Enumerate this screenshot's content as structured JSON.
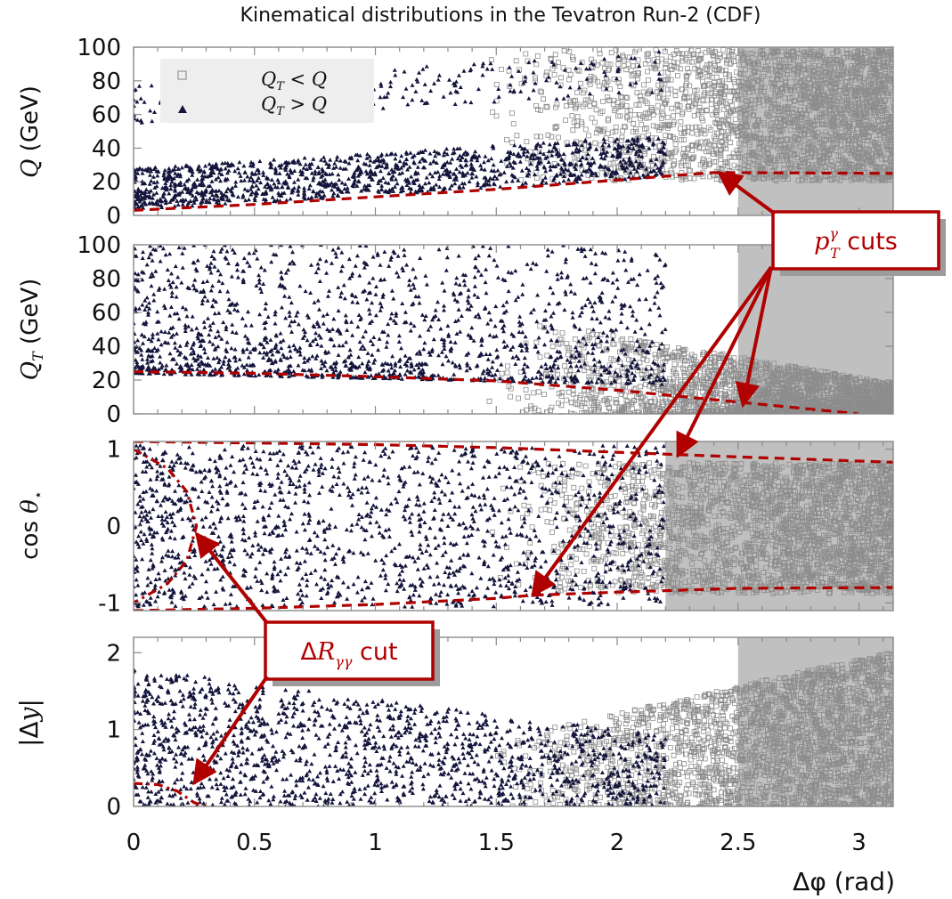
{
  "chart_data": {
    "type": "scatter",
    "title": "Kinematical distributions in the Tevatron Run-2 (CDF)",
    "xlabel": "Δφ (rad)",
    "xlim": [
      0,
      3.1416
    ],
    "x_ticks": [
      "0",
      "0.5",
      "1",
      "1.5",
      "2",
      "2.5",
      "3"
    ],
    "legend": {
      "placement": "top-left of first panel",
      "entries": [
        {
          "name": "Q_T < Q",
          "marker": "open-square",
          "color": "#9a9a9a"
        },
        {
          "name": "Q_T > Q",
          "marker": "filled-triangle",
          "color": "#14143c"
        }
      ]
    },
    "series_colors": {
      "lowQT": "#8c8c8c",
      "highQT": "#14143c",
      "cuts": "#b00000"
    },
    "panels": [
      {
        "id": "Q",
        "ylabel": "Q (GeV)",
        "ylim": [
          0,
          100
        ],
        "y_ticks": [
          "0",
          "20",
          "40",
          "60",
          "80",
          "100"
        ],
        "cut_curves": [
          {
            "name": "pT cut",
            "style": "dashed",
            "points": [
              [
                0,
                3
              ],
              [
                0.5,
                6.5
              ],
              [
                1.0,
                11
              ],
              [
                1.5,
                15.5
              ],
              [
                2.0,
                21
              ],
              [
                2.4,
                25.5
              ],
              [
                3.1416,
                25
              ]
            ]
          }
        ]
      },
      {
        "id": "QT",
        "ylabel": "Q_T (GeV)",
        "ylim": [
          0,
          100
        ],
        "y_ticks": [
          "0",
          "20",
          "40",
          "60",
          "80",
          "100"
        ],
        "cut_curves": [
          {
            "name": "pT cut",
            "style": "dashed",
            "points": [
              [
                0,
                25
              ],
              [
                0.5,
                24
              ],
              [
                1.0,
                22
              ],
              [
                1.5,
                19.5
              ],
              [
                2.0,
                14
              ],
              [
                2.5,
                7
              ],
              [
                3.0,
                0
              ]
            ]
          }
        ]
      },
      {
        "id": "cos",
        "ylabel": "cos θ⋆",
        "ylim": [
          -1.1,
          1.1
        ],
        "y_ticks": [
          "-1",
          "0",
          "1"
        ],
        "cut_curves": [
          {
            "name": "pT cut upper",
            "style": "dashed",
            "points": [
              [
                0,
                1.1
              ],
              [
                0.5,
                1.08
              ],
              [
                1.0,
                1.06
              ],
              [
                1.5,
                1.02
              ],
              [
                2.0,
                0.96
              ],
              [
                2.5,
                0.9
              ],
              [
                3.1416,
                0.83
              ]
            ]
          },
          {
            "name": "pT cut lower",
            "style": "dashed",
            "points": [
              [
                0,
                -1.1
              ],
              [
                0.5,
                -1.07
              ],
              [
                1.0,
                -1.02
              ],
              [
                1.5,
                -0.94
              ],
              [
                1.65,
                -0.9
              ],
              [
                2.0,
                -0.86
              ],
              [
                2.5,
                -0.81
              ],
              [
                3.1416,
                -0.8
              ]
            ]
          },
          {
            "name": "ΔR cut",
            "style": "dashdot",
            "points": [
              [
                0,
                1.0
              ],
              [
                0.14,
                0.75
              ],
              [
                0.22,
                0.45
              ],
              [
                0.26,
                0.0
              ],
              [
                0.22,
                -0.45
              ],
              [
                0.14,
                -0.75
              ],
              [
                0,
                -1.0
              ]
            ]
          }
        ]
      },
      {
        "id": "dy",
        "ylabel": "|Δy|",
        "ylim": [
          0,
          2.2
        ],
        "y_ticks": [
          "0",
          "1",
          "2"
        ],
        "cut_curves": [
          {
            "name": "ΔR cut",
            "style": "dashdot",
            "points": [
              [
                0,
                0.3
              ],
              [
                0.1,
                0.285
              ],
              [
                0.18,
                0.2
              ],
              [
                0.25,
                0.05
              ],
              [
                0.3,
                0.0
              ]
            ]
          }
        ]
      }
    ],
    "annotations": [
      {
        "text": "p_T^γ cuts",
        "arrows_to": [
          {
            "panel": "Q",
            "x": 2.42,
            "y": 25.5
          },
          {
            "panel": "QT",
            "x": 2.52,
            "y": 5
          },
          {
            "panel": "cos",
            "x": 2.25,
            "y": 0.91
          },
          {
            "panel": "cos",
            "x": 1.65,
            "y": -0.9
          }
        ]
      },
      {
        "text": "ΔR_γγ cut",
        "arrows_to": [
          {
            "panel": "cos",
            "x": 0.26,
            "y": -0.1
          },
          {
            "panel": "dy",
            "x": 0.25,
            "y": 0.3
          }
        ]
      }
    ]
  }
}
